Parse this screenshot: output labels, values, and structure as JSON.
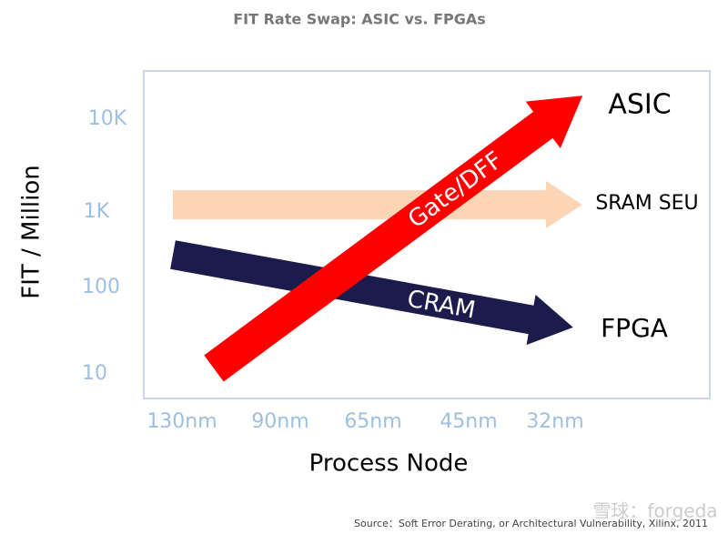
{
  "header": {
    "title": "FIT Rate Swap: ASIC vs. FPGAs"
  },
  "axes": {
    "y_label": "FIT / Million",
    "y_ticks": [
      "10K",
      "1K",
      "100",
      "10"
    ],
    "x_label": "Process Node",
    "x_ticks": [
      "130nm",
      "90nm",
      "65nm",
      "45nm",
      "32nm"
    ]
  },
  "arrows": [
    {
      "label": "",
      "end_label": "SRAM SEU"
    },
    {
      "label": "CRAM",
      "end_label": "FPGA"
    },
    {
      "label": "Gate/DFF",
      "end_label": "ASIC"
    }
  ],
  "source": "Source：Soft Error Derating, or Architectural Vulnerability, Xilinx, 2011",
  "watermark": "雪球：forgeda"
}
